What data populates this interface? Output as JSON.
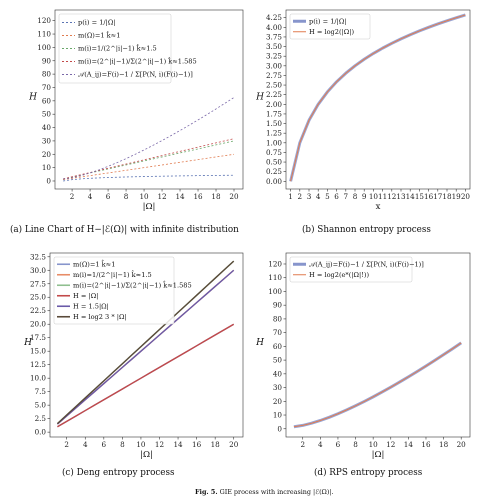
{
  "figure_caption": {
    "label": "Fig. 5.",
    "text": " GIE process with increasing |ℰ(Ω)|."
  },
  "chart_data": [
    {
      "id": "a",
      "type": "line",
      "caption": "(a) Line Chart of H−|ℰ(Ω)| with infinite distribution",
      "xlabel": "|Ω|",
      "ylabel": "H",
      "xlim": [
        0.1,
        21
      ],
      "ylim": [
        -6,
        128
      ],
      "xticks": [
        2,
        4,
        6,
        8,
        10,
        12,
        14,
        16,
        18,
        20
      ],
      "yticks": [
        0,
        10,
        20,
        30,
        40,
        50,
        60,
        70,
        80,
        90,
        100,
        110,
        120
      ],
      "legend_position": "top-left",
      "series": [
        {
          "name": "p(i) = 1/|Ω|",
          "color": "#5b74b3",
          "dash": "2,2",
          "kind": "log2"
        },
        {
          "name": "m(Ω)=1  k̂≈1",
          "color": "#e07b4f",
          "dash": "2,2",
          "kind": "linear1"
        },
        {
          "name": "m(i)=1/(2^|i|−1)  k̂≈1.5",
          "color": "#6aa86a",
          "dash": "2,2",
          "kind": "linear15"
        },
        {
          "name": "m(i)=(2^|i|−1)/Σ(2^|i|−1)  k̂≈1.585",
          "color": "#c24a4a",
          "dash": "2,2",
          "kind": "linear1585"
        },
        {
          "name": "𝒜(A_ij)=F(i)−1 / Σ[P(N, i)(F(i)−1)]",
          "color": "#7a68a8",
          "dash": "2,2",
          "kind": "rps"
        }
      ]
    },
    {
      "id": "b",
      "type": "line",
      "caption": "(b) Shannon entropy process",
      "xlabel": "x",
      "ylabel": "H",
      "xlim": [
        0.5,
        20.5
      ],
      "ylim": [
        -0.2,
        4.45
      ],
      "xticks": [
        1,
        2,
        3,
        4,
        5,
        6,
        7,
        8,
        9,
        10,
        11,
        12,
        13,
        14,
        15,
        16,
        17,
        18,
        19,
        20
      ],
      "ytick_labels": [
        "0.00",
        "0.25",
        "0.50",
        "0.75",
        "1.00",
        "1.25",
        "1.50",
        "1.75",
        "2.00",
        "2.25",
        "2.50",
        "2.75",
        "3.00",
        "3.25",
        "3.50",
        "3.75",
        "4.00",
        "4.25"
      ],
      "legend_position": "top-left",
      "series": [
        {
          "name": "p(i) = 1/|Ω|",
          "color": "#8795cc",
          "dash": "",
          "width": 3,
          "kind": "log2"
        },
        {
          "name": "H = log2(|Ω|)",
          "color": "#e07b4f",
          "dash": "",
          "width": 1,
          "kind": "log2"
        }
      ]
    },
    {
      "id": "c",
      "type": "line",
      "caption": "(c) Deng entropy process",
      "xlabel": "|Ω|",
      "ylabel": "H",
      "xlim": [
        0.2,
        21
      ],
      "ylim": [
        -0.9,
        33.2
      ],
      "xticks": [
        2,
        4,
        6,
        8,
        10,
        12,
        14,
        16,
        18,
        20
      ],
      "ytick_labels": [
        "0.0",
        "2.5",
        "5.0",
        "7.5",
        "10.0",
        "12.5",
        "15.0",
        "17.5",
        "20.0",
        "22.5",
        "25.0",
        "27.5",
        "30.0",
        "32.5"
      ],
      "legend_position": "top-left",
      "series": [
        {
          "name": "m(Ω)=1  k̂≈1",
          "color": "#8795cc",
          "kind": "linear1"
        },
        {
          "name": "m(i)=1/(2^|i|−1)  k̂≈1.5",
          "color": "#e88d67",
          "kind": "linear15"
        },
        {
          "name": "m(i)=(2^|i|−1)/Σ(2^|i|−1)  k̂≈1.585",
          "color": "#8fbf8f",
          "kind": "linear1585"
        },
        {
          "name": "H = |Ω|",
          "color": "#c24a4a",
          "kind": "linear1"
        },
        {
          "name": "H = 1.5|Ω|",
          "color": "#6a5aa8",
          "kind": "linear15"
        },
        {
          "name": "H = log2 3 * |Ω|",
          "color": "#5a4a3a",
          "kind": "linear1585"
        }
      ]
    },
    {
      "id": "d",
      "type": "line",
      "caption": "(d) RPS entropy process",
      "xlabel": "|Ω|",
      "ylabel": "H",
      "xlim": [
        0.1,
        21
      ],
      "ylim": [
        -6,
        128
      ],
      "xticks": [
        2,
        4,
        6,
        8,
        10,
        12,
        14,
        16,
        18,
        20
      ],
      "yticks": [
        0,
        10,
        20,
        30,
        40,
        50,
        60,
        70,
        80,
        90,
        100,
        110,
        120
      ],
      "legend_position": "top-left",
      "series": [
        {
          "name": "𝒜(A_ij)=F(i)−1 / Σ[P(N, i)(F(i)−1)]",
          "color": "#8795cc",
          "width": 3,
          "kind": "rps"
        },
        {
          "name": "H = log2(e*(|Ω|!))",
          "color": "#e07b4f",
          "width": 1,
          "kind": "rps"
        }
      ]
    }
  ]
}
